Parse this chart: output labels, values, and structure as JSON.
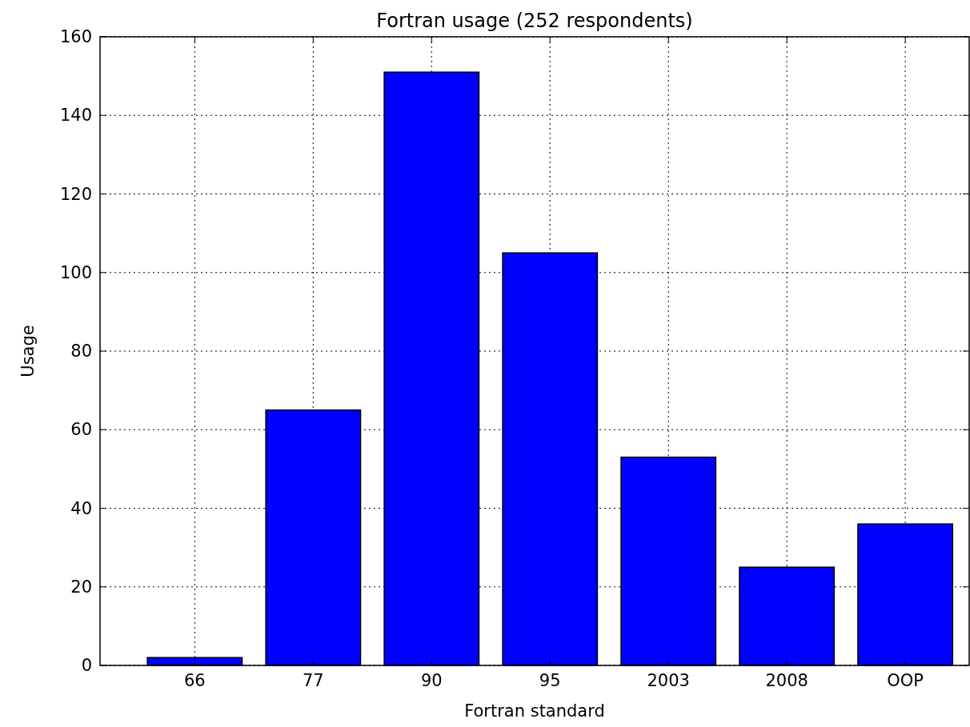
{
  "chart_data": {
    "type": "bar",
    "title": "Fortran usage (252 respondents)",
    "xlabel": "Fortran standard",
    "ylabel": "Usage",
    "categories": [
      "66",
      "77",
      "90",
      "95",
      "2003",
      "2008",
      "OOP"
    ],
    "values": [
      2,
      65,
      151,
      105,
      53,
      25,
      36
    ],
    "color": "#0000ff",
    "ylim": [
      0,
      160
    ],
    "yticks": [
      0,
      20,
      40,
      60,
      80,
      100,
      120,
      140,
      160
    ],
    "grid": true
  }
}
